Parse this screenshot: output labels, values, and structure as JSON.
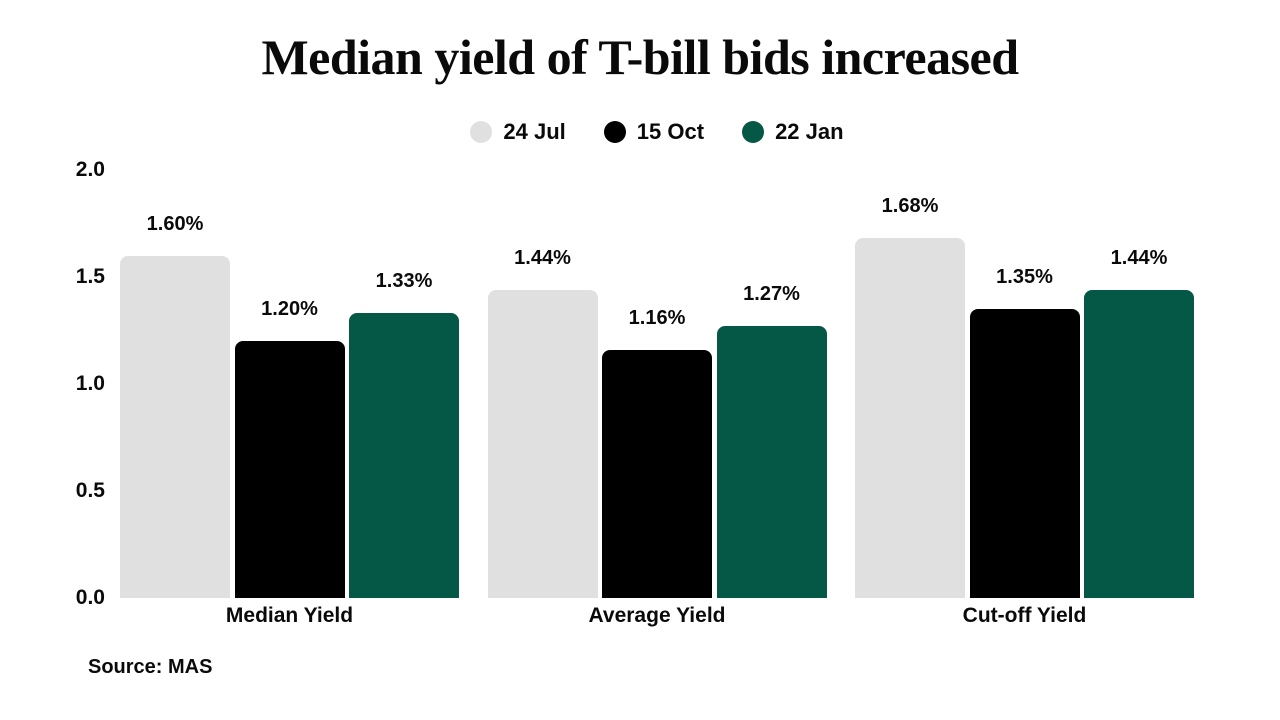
{
  "title": "Median yield of T-bill bids increased",
  "source": "Source: MAS",
  "colors": {
    "background": "#ffffff",
    "text": "#0a0a0a",
    "series_24_jul": "#e0e0e0",
    "series_15_oct": "#000000",
    "series_22_jan": "#065846"
  },
  "chart_data": {
    "type": "bar",
    "title": "Median yield of T-bill bids increased",
    "categories": [
      "Median Yield",
      "Average Yield",
      "Cut-off Yield"
    ],
    "series": [
      {
        "name": "24 Jul",
        "color": "#e0e0e0",
        "values": [
          1.6,
          1.44,
          1.68
        ],
        "labels": [
          "1.60%",
          "1.44%",
          "1.68%"
        ]
      },
      {
        "name": "15 Oct",
        "color": "#000000",
        "values": [
          1.2,
          1.16,
          1.35
        ],
        "labels": [
          "1.20%",
          "1.16%",
          "1.35%"
        ]
      },
      {
        "name": "22 Jan",
        "color": "#065846",
        "values": [
          1.33,
          1.27,
          1.44
        ],
        "labels": [
          "1.33%",
          "1.27%",
          "1.44%"
        ]
      }
    ],
    "xlabel": "",
    "ylabel": "",
    "ylim": [
      0.0,
      2.0
    ],
    "yticks": [
      "2.0",
      "1.5",
      "1.0",
      "0.5",
      "0.0"
    ],
    "grid": false,
    "legend_position": "top-center",
    "source": "Source: MAS"
  }
}
